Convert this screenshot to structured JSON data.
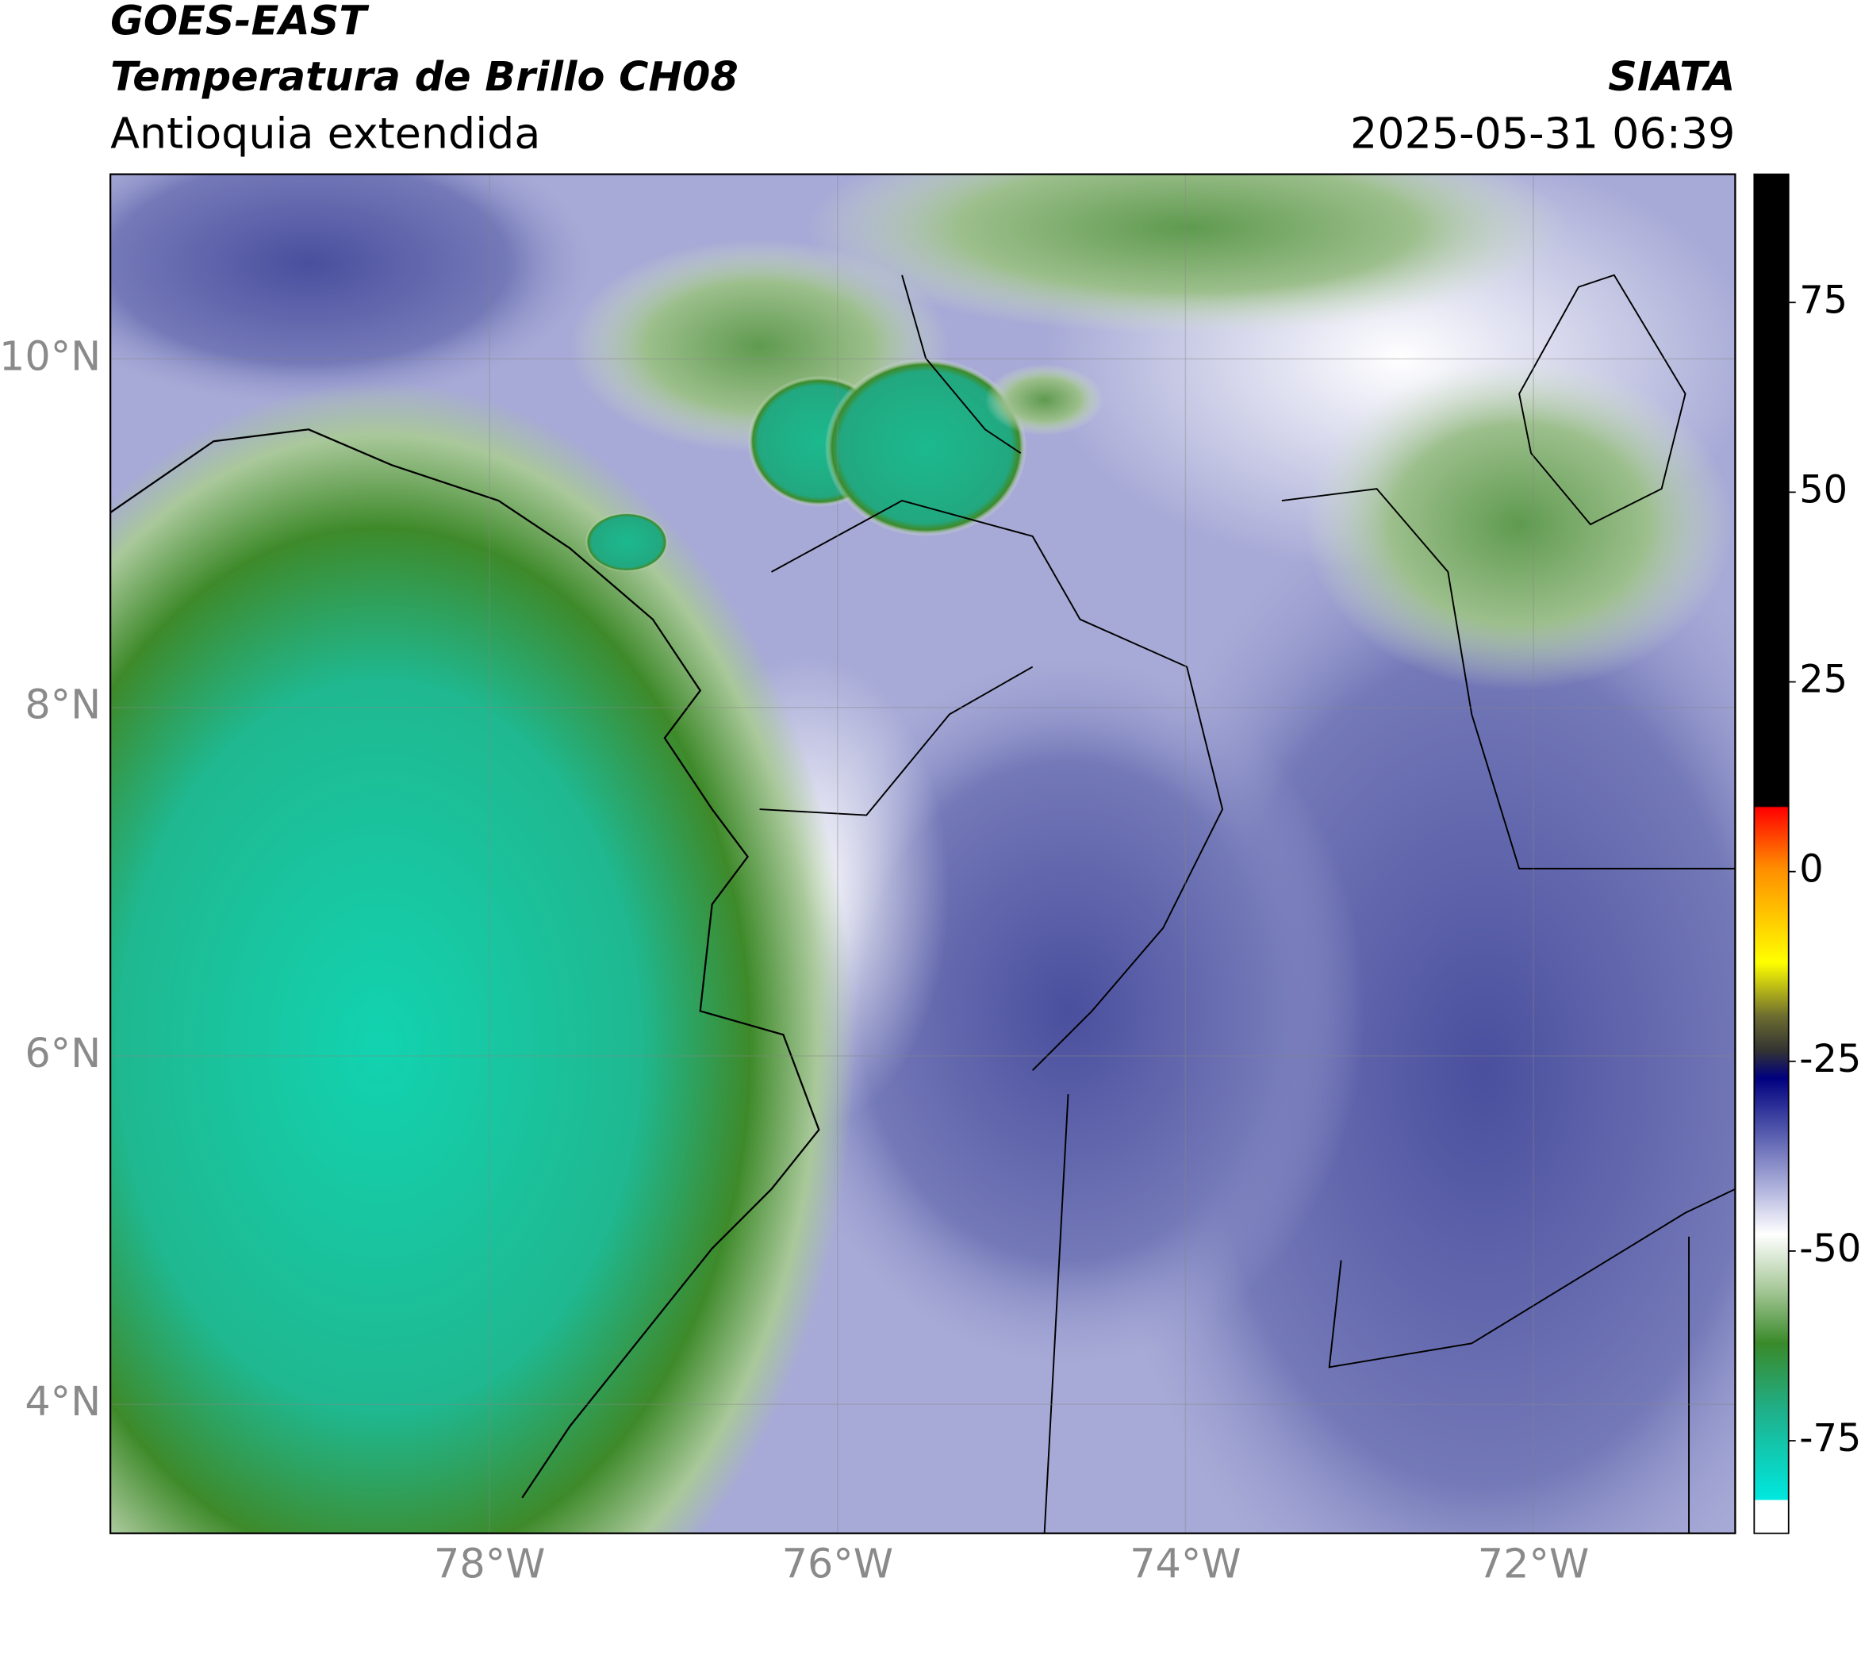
{
  "header": {
    "title": "GOES-EAST",
    "subtitle": "Temperatura de Brillo CH08",
    "region": "Antioquia extendida",
    "org": "SIATA",
    "datetime": "2025-05-31 06:39"
  },
  "map": {
    "xlim": [
      -80.18,
      -70.84
    ],
    "ylim": [
      3.26,
      11.06
    ],
    "xticks": [
      {
        "value": -78,
        "label": "78°W"
      },
      {
        "value": -76,
        "label": "76°W"
      },
      {
        "value": -74,
        "label": "74°W"
      },
      {
        "value": -72,
        "label": "72°W"
      }
    ],
    "yticks": [
      {
        "value": 10,
        "label": "10°N"
      },
      {
        "value": 8,
        "label": "8°N"
      },
      {
        "value": 6,
        "label": "6°N"
      },
      {
        "value": 4,
        "label": "4°N"
      }
    ],
    "grid": true
  },
  "colorbar": {
    "lim": [
      -87.2,
      91.9
    ],
    "ticks": [
      75,
      50,
      25,
      0,
      -25,
      -50,
      -75
    ]
  }
}
